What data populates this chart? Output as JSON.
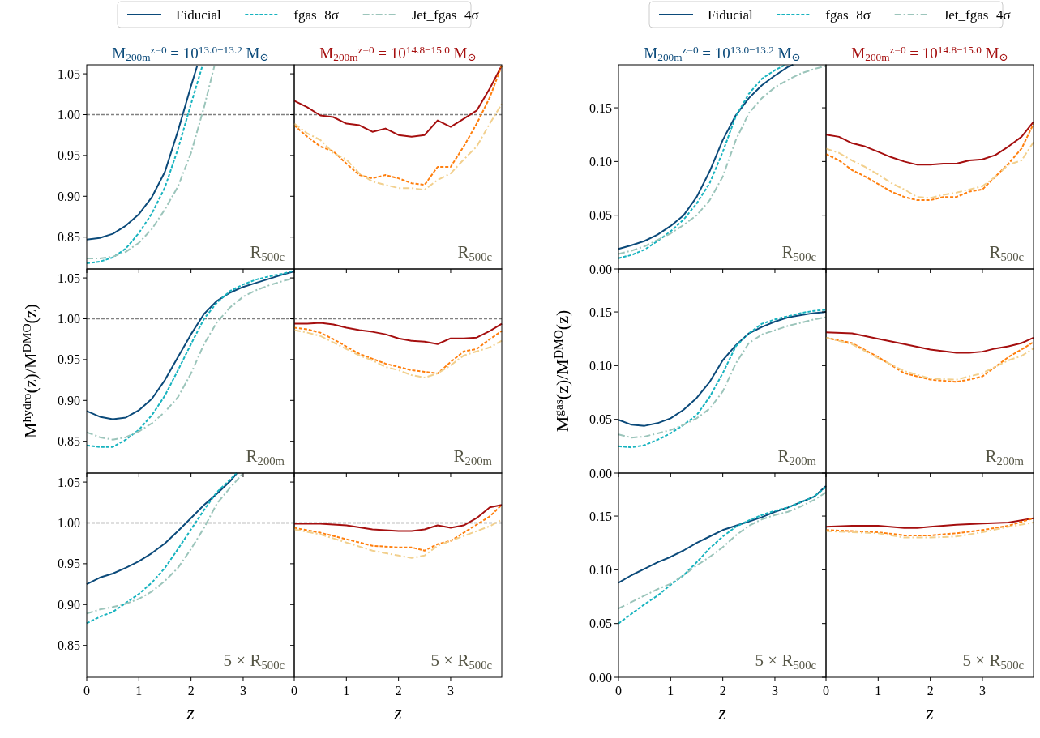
{
  "chart_data": [
    {
      "type": "line",
      "title": "M$_{200m}$$^{z=0}$ = 10$^{13.0−13.2}$ M$_{⊙}$",
      "legend": "top",
      "xlim": [
        0,
        3.98
      ],
      "xticks": [
        0,
        1,
        2,
        3
      ],
      "ylim": [
        0.811,
        1.061
      ],
      "yticks": [
        {
          "value": 0.85,
          "label": "0.85"
        },
        {
          "value": 0.9,
          "label": "0.90"
        },
        {
          "value": 0.95,
          "label": "0.95"
        },
        {
          "value": 1.0,
          "label": "1.00"
        },
        {
          "value": 1.05,
          "label": "1.05"
        }
      ],
      "tick_labels": "y",
      "ref_lines": [
        {
          "axis": "y",
          "value": 1.0,
          "color": "#808080",
          "line_style": "dashed"
        }
      ],
      "annotations": [
        "R$_{500c}$"
      ],
      "series": [
        {
          "name": "Fiducial",
          "color": "#0b4a7a",
          "line_style": "solid",
          "x": [
            0,
            0.25,
            0.5,
            0.75,
            1,
            1.25,
            1.5,
            1.75,
            2,
            2.12
          ],
          "values": [
            0.847,
            0.849,
            0.854,
            0.864,
            0.878,
            0.899,
            0.93,
            0.98,
            1.035,
            1.06
          ]
        },
        {
          "name": "fgas−8σ",
          "color": "#17b3bf",
          "line_style": "dashed",
          "x": [
            0,
            0.25,
            0.5,
            0.75,
            1,
            1.25,
            1.5,
            1.75,
            2,
            2.22
          ],
          "values": [
            0.818,
            0.82,
            0.825,
            0.836,
            0.855,
            0.879,
            0.911,
            0.958,
            1.013,
            1.06
          ]
        },
        {
          "name": "Jet_fgas−4σ",
          "color": "#9cc5bb",
          "line_style": "dashdot",
          "x": [
            0,
            0.25,
            0.5,
            0.75,
            1,
            1.25,
            1.5,
            1.75,
            2,
            2.25,
            2.45
          ],
          "values": [
            0.824,
            0.824,
            0.826,
            0.832,
            0.843,
            0.86,
            0.884,
            0.912,
            0.953,
            1.009,
            1.06
          ]
        }
      ]
    },
    {
      "type": "line",
      "title": "M$_{200m}$$^{z=0}$ = 10$^{14.8−15.0}$ M$_{⊙}$",
      "xlim": [
        0,
        3.98
      ],
      "xticks": [
        0,
        1,
        2,
        3
      ],
      "ylim": [
        0.811,
        1.061
      ],
      "yticks": [
        0.85,
        0.9,
        0.95,
        1.0,
        1.05
      ],
      "tick_labels": false,
      "ref_lines": [
        {
          "axis": "y",
          "value": 1.0,
          "color": "#808080",
          "line_style": "dashed"
        }
      ],
      "annotations": [
        "R$_{500c}$"
      ],
      "series": [
        {
          "color": "#a50f0f",
          "line_style": "solid",
          "x": [
            0,
            0.25,
            0.5,
            0.75,
            1,
            1.25,
            1.5,
            1.75,
            2,
            2.25,
            2.5,
            2.75,
            3,
            3.25,
            3.5,
            3.75,
            3.98
          ],
          "values": [
            1.017,
            1.009,
            0.999,
            0.997,
            0.989,
            0.987,
            0.979,
            0.983,
            0.975,
            0.973,
            0.975,
            0.993,
            0.985,
            0.995,
            1.005,
            1.032,
            1.06
          ]
        },
        {
          "color": "#ff7f0e",
          "line_style": "dashed",
          "x": [
            0,
            0.25,
            0.5,
            0.75,
            1,
            1.25,
            1.5,
            1.75,
            2,
            2.25,
            2.5,
            2.75,
            3,
            3.25,
            3.5,
            3.75,
            3.98
          ],
          "values": [
            0.987,
            0.973,
            0.961,
            0.955,
            0.94,
            0.926,
            0.922,
            0.926,
            0.922,
            0.916,
            0.914,
            0.936,
            0.936,
            0.961,
            0.989,
            1.021,
            1.06
          ]
        },
        {
          "color": "#f2d08e",
          "line_style": "dashdot",
          "x": [
            0,
            0.25,
            0.5,
            0.75,
            1,
            1.25,
            1.5,
            1.75,
            2,
            2.25,
            2.5,
            2.75,
            3,
            3.25,
            3.5,
            3.75,
            3.98
          ],
          "values": [
            0.989,
            0.977,
            0.969,
            0.953,
            0.945,
            0.928,
            0.918,
            0.914,
            0.91,
            0.91,
            0.908,
            0.92,
            0.928,
            0.945,
            0.961,
            0.989,
            1.013
          ]
        }
      ]
    },
    {
      "type": "line",
      "ylabel": "M$^{hydro}$(z)/M$^{DMO}$(z)",
      "xlim": [
        0,
        3.98
      ],
      "xticks": [
        0,
        1,
        2,
        3
      ],
      "ylim": [
        0.811,
        1.061
      ],
      "yticks": [
        {
          "value": 0.85,
          "label": "0.85"
        },
        {
          "value": 0.9,
          "label": "0.90"
        },
        {
          "value": 0.95,
          "label": "0.95"
        },
        {
          "value": 1.0,
          "label": "1.00"
        },
        {
          "value": 1.05,
          "label": "1.05"
        }
      ],
      "tick_labels": "y",
      "ref_lines": [
        {
          "axis": "y",
          "value": 1.0,
          "color": "#808080",
          "line_style": "dashed"
        }
      ],
      "annotations": [
        "R$_{200m}$"
      ],
      "series": [
        {
          "color": "#0b4a7a",
          "line_style": "solid",
          "x": [
            0,
            0.25,
            0.5,
            0.75,
            1,
            1.25,
            1.5,
            1.75,
            2,
            2.25,
            2.5,
            2.75,
            3,
            3.25,
            3.5,
            3.75,
            3.98
          ],
          "values": [
            0.887,
            0.88,
            0.877,
            0.879,
            0.888,
            0.902,
            0.925,
            0.953,
            0.981,
            1.006,
            1.022,
            1.032,
            1.039,
            1.044,
            1.049,
            1.054,
            1.058
          ]
        },
        {
          "color": "#17b3bf",
          "line_style": "dashed",
          "x": [
            0,
            0.25,
            0.5,
            0.75,
            1,
            1.25,
            1.5,
            1.75,
            2,
            2.25,
            2.5,
            2.75,
            3,
            3.25,
            3.5,
            3.75,
            3.98
          ],
          "values": [
            0.845,
            0.843,
            0.843,
            0.852,
            0.864,
            0.882,
            0.906,
            0.937,
            0.969,
            1.0,
            1.02,
            1.034,
            1.042,
            1.048,
            1.052,
            1.055,
            1.059
          ]
        },
        {
          "color": "#9cc5bb",
          "line_style": "dashdot",
          "x": [
            0,
            0.25,
            0.5,
            0.75,
            1,
            1.25,
            1.5,
            1.75,
            2,
            2.25,
            2.5,
            2.75,
            3,
            3.25,
            3.5,
            3.75,
            3.98
          ],
          "values": [
            0.861,
            0.855,
            0.852,
            0.855,
            0.862,
            0.872,
            0.886,
            0.904,
            0.933,
            0.969,
            0.996,
            1.014,
            1.027,
            1.035,
            1.041,
            1.046,
            1.05
          ]
        }
      ]
    },
    {
      "type": "line",
      "xlim": [
        0,
        3.98
      ],
      "xticks": [
        0,
        1,
        2,
        3
      ],
      "ylim": [
        0.811,
        1.061
      ],
      "yticks": [
        0.85,
        0.9,
        0.95,
        1.0,
        1.05
      ],
      "tick_labels": false,
      "ref_lines": [
        {
          "axis": "y",
          "value": 1.0,
          "color": "#808080",
          "line_style": "dashed"
        }
      ],
      "annotations": [
        "R$_{200m}$"
      ],
      "series": [
        {
          "color": "#a50f0f",
          "line_style": "solid",
          "x": [
            0,
            0.25,
            0.5,
            0.75,
            1,
            1.25,
            1.5,
            1.75,
            2,
            2.25,
            2.5,
            2.75,
            3,
            3.25,
            3.5,
            3.75,
            3.98
          ],
          "values": [
            0.994,
            0.994,
            0.995,
            0.993,
            0.989,
            0.986,
            0.984,
            0.981,
            0.976,
            0.973,
            0.972,
            0.969,
            0.976,
            0.976,
            0.977,
            0.985,
            0.994
          ]
        },
        {
          "color": "#ff7f0e",
          "line_style": "dashed",
          "x": [
            0,
            0.25,
            0.5,
            0.75,
            1,
            1.25,
            1.5,
            1.75,
            2,
            2.25,
            2.5,
            2.75,
            3,
            3.25,
            3.5,
            3.75,
            3.98
          ],
          "values": [
            0.989,
            0.987,
            0.983,
            0.975,
            0.966,
            0.957,
            0.951,
            0.945,
            0.941,
            0.937,
            0.935,
            0.933,
            0.947,
            0.96,
            0.963,
            0.975,
            0.985
          ]
        },
        {
          "color": "#f2d08e",
          "line_style": "dashdot",
          "x": [
            0,
            0.25,
            0.5,
            0.75,
            1,
            1.25,
            1.5,
            1.75,
            2,
            2.25,
            2.5,
            2.75,
            3,
            3.25,
            3.5,
            3.75,
            3.98
          ],
          "values": [
            0.986,
            0.983,
            0.979,
            0.971,
            0.963,
            0.955,
            0.949,
            0.941,
            0.937,
            0.931,
            0.928,
            0.933,
            0.943,
            0.955,
            0.96,
            0.965,
            0.973
          ]
        }
      ]
    },
    {
      "type": "line",
      "xlabel": "z",
      "xlim": [
        0,
        3.98
      ],
      "xticks": [
        0,
        1,
        2,
        3
      ],
      "ylim": [
        0.811,
        1.061
      ],
      "yticks": [
        {
          "value": 0.85,
          "label": "0.85"
        },
        {
          "value": 0.9,
          "label": "0.90"
        },
        {
          "value": 0.95,
          "label": "0.95"
        },
        {
          "value": 1.0,
          "label": "1.00"
        },
        {
          "value": 1.05,
          "label": "1.05"
        }
      ],
      "ref_lines": [
        {
          "axis": "y",
          "value": 1.0,
          "color": "#808080",
          "line_style": "dashed"
        }
      ],
      "annotations": [
        "5 × R$_{500c}$"
      ],
      "series": [
        {
          "color": "#0b4a7a",
          "line_style": "solid",
          "x": [
            0,
            0.25,
            0.5,
            0.75,
            1,
            1.25,
            1.5,
            1.75,
            2,
            2.25,
            2.5,
            2.75,
            2.88
          ],
          "values": [
            0.925,
            0.933,
            0.938,
            0.945,
            0.953,
            0.963,
            0.975,
            0.99,
            1.006,
            1.022,
            1.036,
            1.051,
            1.061
          ]
        },
        {
          "color": "#17b3bf",
          "line_style": "dashed",
          "x": [
            0,
            0.25,
            0.5,
            0.75,
            1,
            1.25,
            1.5,
            1.75,
            2,
            2.25,
            2.5,
            2.75,
            2.87
          ],
          "values": [
            0.877,
            0.885,
            0.891,
            0.902,
            0.913,
            0.927,
            0.945,
            0.968,
            0.992,
            1.016,
            1.038,
            1.053,
            1.061
          ]
        },
        {
          "color": "#9cc5bb",
          "line_style": "dashdot",
          "x": [
            0,
            0.25,
            0.5,
            0.75,
            1,
            1.25,
            1.5,
            1.75,
            2,
            2.25,
            2.5,
            2.75,
            3.0
          ],
          "values": [
            0.889,
            0.894,
            0.897,
            0.901,
            0.907,
            0.916,
            0.929,
            0.945,
            0.968,
            0.994,
            1.024,
            1.043,
            1.061
          ]
        }
      ]
    },
    {
      "type": "line",
      "xlabel": "z",
      "xlim": [
        0,
        3.98
      ],
      "xticks": [
        0,
        1,
        2,
        3
      ],
      "ylim": [
        0.811,
        1.061
      ],
      "yticks": [
        0.85,
        0.9,
        0.95,
        1.0,
        1.05
      ],
      "tick_labels": "x",
      "ref_lines": [
        {
          "axis": "y",
          "value": 1.0,
          "color": "#808080",
          "line_style": "dashed"
        }
      ],
      "annotations": [
        "5 × R$_{500c}$"
      ],
      "series": [
        {
          "color": "#a50f0f",
          "line_style": "solid",
          "x": [
            0,
            0.5,
            1,
            1.5,
            2,
            2.25,
            2.5,
            2.75,
            3,
            3.25,
            3.5,
            3.75,
            3.98
          ],
          "values": [
            0.999,
            0.999,
            0.997,
            0.992,
            0.99,
            0.99,
            0.992,
            0.997,
            0.994,
            0.997,
            1.006,
            1.019,
            1.022
          ]
        },
        {
          "color": "#ff7f0e",
          "line_style": "dashed",
          "x": [
            0,
            0.5,
            1,
            1.5,
            2,
            2.25,
            2.5,
            2.75,
            3,
            3.25,
            3.5,
            3.75,
            3.98
          ],
          "values": [
            0.994,
            0.988,
            0.98,
            0.972,
            0.97,
            0.97,
            0.966,
            0.974,
            0.978,
            0.988,
            0.998,
            1.008,
            1.022
          ]
        },
        {
          "color": "#f2d08e",
          "line_style": "dashdot",
          "x": [
            0,
            0.5,
            1,
            1.5,
            2,
            2.25,
            2.5,
            2.75,
            3,
            3.25,
            3.5,
            3.75,
            3.98
          ],
          "values": [
            0.992,
            0.986,
            0.976,
            0.966,
            0.96,
            0.957,
            0.96,
            0.972,
            0.978,
            0.984,
            0.99,
            0.996,
            1.004
          ]
        }
      ]
    },
    {
      "type": "line",
      "title": "M$_{200m}$$^{z=0}$ = 10$^{13.0−13.2}$ M$_{⊙}$",
      "legend": "top",
      "xlim": [
        0,
        3.98
      ],
      "xticks": [
        0,
        1,
        2,
        3
      ],
      "ylim": [
        0,
        0.19
      ],
      "yticks": [
        {
          "value": 0,
          "label": "0.00"
        },
        {
          "value": 0.05,
          "label": "0.05"
        },
        {
          "value": 0.1,
          "label": "0.10"
        },
        {
          "value": 0.15,
          "label": "0.15"
        }
      ],
      "tick_labels": "y",
      "annotations": [
        "R$_{500c}$"
      ],
      "series": [
        {
          "name": "Fiducial",
          "color": "#0b4a7a",
          "line_style": "solid",
          "x": [
            0,
            0.25,
            0.5,
            0.75,
            1,
            1.25,
            1.5,
            1.75,
            2,
            2.25,
            2.5,
            2.75,
            3,
            3.25,
            3.35
          ],
          "values": [
            0.0186,
            0.022,
            0.026,
            0.032,
            0.04,
            0.05,
            0.067,
            0.091,
            0.12,
            0.143,
            0.159,
            0.171,
            0.18,
            0.188,
            0.19
          ]
        },
        {
          "name": "fgas−8σ",
          "color": "#17b3bf",
          "line_style": "dashed",
          "x": [
            0,
            0.25,
            0.5,
            0.75,
            1,
            1.25,
            1.5,
            1.75,
            2,
            2.25,
            2.5,
            2.75,
            3,
            3.2
          ],
          "values": [
            0.01,
            0.013,
            0.018,
            0.026,
            0.035,
            0.046,
            0.061,
            0.08,
            0.109,
            0.142,
            0.163,
            0.177,
            0.185,
            0.19
          ]
        },
        {
          "name": "Jet_fgas−4σ",
          "color": "#9cc5bb",
          "line_style": "dashdot",
          "x": [
            0,
            0.25,
            0.5,
            0.75,
            1,
            1.25,
            1.5,
            1.75,
            2,
            2.25,
            2.5,
            2.75,
            3,
            3.25,
            3.5,
            3.75,
            3.98
          ],
          "values": [
            0.014,
            0.017,
            0.021,
            0.027,
            0.033,
            0.041,
            0.05,
            0.064,
            0.086,
            0.12,
            0.145,
            0.159,
            0.169,
            0.176,
            0.182,
            0.186,
            0.189
          ]
        }
      ]
    },
    {
      "type": "line",
      "title": "M$_{200m}$$^{z=0}$ = 10$^{14.8−15.0}$ M$_{⊙}$",
      "xlim": [
        0,
        3.98
      ],
      "xticks": [
        0,
        1,
        2,
        3
      ],
      "ylim": [
        0,
        0.19
      ],
      "yticks": [
        0,
        0.05,
        0.1,
        0.15
      ],
      "tick_labels": false,
      "annotations": [
        "R$_{500c}$"
      ],
      "series": [
        {
          "color": "#a50f0f",
          "line_style": "solid",
          "x": [
            0,
            0.25,
            0.5,
            0.75,
            1,
            1.25,
            1.5,
            1.75,
            2,
            2.25,
            2.5,
            2.75,
            3,
            3.25,
            3.5,
            3.75,
            3.98
          ],
          "values": [
            0.125,
            0.123,
            0.117,
            0.114,
            0.109,
            0.104,
            0.1,
            0.097,
            0.097,
            0.098,
            0.098,
            0.101,
            0.102,
            0.106,
            0.114,
            0.123,
            0.137
          ]
        },
        {
          "color": "#ff7f0e",
          "line_style": "dashed",
          "x": [
            0,
            0.25,
            0.5,
            0.75,
            1,
            1.25,
            1.5,
            1.75,
            2,
            2.25,
            2.5,
            2.75,
            3,
            3.25,
            3.5,
            3.75,
            3.98
          ],
          "values": [
            0.107,
            0.101,
            0.092,
            0.086,
            0.079,
            0.072,
            0.067,
            0.064,
            0.064,
            0.067,
            0.067,
            0.072,
            0.074,
            0.086,
            0.098,
            0.112,
            0.135
          ]
        },
        {
          "color": "#f2d08e",
          "line_style": "dashdot",
          "x": [
            0,
            0.25,
            0.5,
            0.75,
            1,
            1.25,
            1.5,
            1.75,
            2,
            2.25,
            2.5,
            2.75,
            3,
            3.25,
            3.5,
            3.75,
            3.98
          ],
          "values": [
            0.112,
            0.108,
            0.101,
            0.095,
            0.088,
            0.08,
            0.074,
            0.067,
            0.066,
            0.069,
            0.071,
            0.074,
            0.077,
            0.086,
            0.097,
            0.101,
            0.118
          ]
        }
      ]
    },
    {
      "type": "line",
      "ylabel": "M$^{gas}$(z)/M$^{DMO}$(z)",
      "xlim": [
        0,
        3.98
      ],
      "xticks": [
        0,
        1,
        2,
        3
      ],
      "ylim": [
        0,
        0.19
      ],
      "yticks": [
        {
          "value": 0,
          "label": "0.00"
        },
        {
          "value": 0.05,
          "label": "0.05"
        },
        {
          "value": 0.1,
          "label": "0.10"
        },
        {
          "value": 0.15,
          "label": "0.15"
        }
      ],
      "tick_labels": "y",
      "annotations": [
        "R$_{200m}$"
      ],
      "series": [
        {
          "color": "#0b4a7a",
          "line_style": "solid",
          "x": [
            0,
            0.25,
            0.5,
            0.75,
            1,
            1.25,
            1.5,
            1.75,
            2,
            2.25,
            2.5,
            2.75,
            3,
            3.25,
            3.5,
            3.75,
            3.98
          ],
          "values": [
            0.0496,
            0.045,
            0.044,
            0.0465,
            0.051,
            0.059,
            0.07,
            0.085,
            0.105,
            0.119,
            0.13,
            0.136,
            0.141,
            0.145,
            0.147,
            0.149,
            0.15
          ]
        },
        {
          "color": "#17b3bf",
          "line_style": "dashed",
          "x": [
            0,
            0.25,
            0.5,
            0.75,
            1,
            1.25,
            1.5,
            1.75,
            2,
            2.25,
            2.5,
            2.75,
            3,
            3.25,
            3.5,
            3.75,
            3.98
          ],
          "values": [
            0.025,
            0.024,
            0.026,
            0.031,
            0.037,
            0.045,
            0.054,
            0.071,
            0.093,
            0.118,
            0.13,
            0.139,
            0.143,
            0.146,
            0.149,
            0.151,
            0.152
          ]
        },
        {
          "color": "#9cc5bb",
          "line_style": "dashdot",
          "x": [
            0,
            0.25,
            0.5,
            0.75,
            1,
            1.25,
            1.5,
            1.75,
            2,
            2.25,
            2.5,
            2.75,
            3,
            3.25,
            3.5,
            3.75,
            3.98
          ],
          "values": [
            0.036,
            0.033,
            0.034,
            0.037,
            0.04,
            0.045,
            0.051,
            0.06,
            0.076,
            0.102,
            0.121,
            0.129,
            0.133,
            0.137,
            0.14,
            0.143,
            0.145
          ]
        }
      ]
    },
    {
      "type": "line",
      "xlim": [
        0,
        3.98
      ],
      "xticks": [
        0,
        1,
        2,
        3
      ],
      "ylim": [
        0,
        0.19
      ],
      "yticks": [
        0,
        0.05,
        0.1,
        0.15
      ],
      "tick_labels": false,
      "annotations": [
        "R$_{200m}$"
      ],
      "series": [
        {
          "color": "#a50f0f",
          "line_style": "solid",
          "x": [
            0,
            0.5,
            1,
            1.5,
            2,
            2.5,
            2.75,
            3,
            3.25,
            3.5,
            3.75,
            3.98
          ],
          "values": [
            0.131,
            0.13,
            0.125,
            0.12,
            0.115,
            0.112,
            0.112,
            0.113,
            0.116,
            0.118,
            0.121,
            0.126
          ]
        },
        {
          "color": "#ff7f0e",
          "line_style": "dashed",
          "x": [
            0,
            0.5,
            1,
            1.5,
            2,
            2.25,
            2.5,
            2.75,
            3,
            3.25,
            3.5,
            3.75,
            3.98
          ],
          "values": [
            0.126,
            0.121,
            0.108,
            0.093,
            0.087,
            0.086,
            0.085,
            0.087,
            0.09,
            0.099,
            0.108,
            0.115,
            0.122
          ]
        },
        {
          "color": "#f2d08e",
          "line_style": "dashdot",
          "x": [
            0,
            0.5,
            1,
            1.5,
            2,
            2.5,
            2.75,
            3,
            3.25,
            3.5,
            3.75,
            3.98
          ],
          "values": [
            0.126,
            0.12,
            0.107,
            0.095,
            0.088,
            0.087,
            0.09,
            0.093,
            0.099,
            0.105,
            0.109,
            0.116
          ]
        }
      ]
    },
    {
      "type": "line",
      "xlabel": "z",
      "xlim": [
        0,
        3.98
      ],
      "xticks": [
        0,
        1,
        2,
        3
      ],
      "ylim": [
        0,
        0.19
      ],
      "yticks": [
        {
          "value": 0,
          "label": "0.00"
        },
        {
          "value": 0.05,
          "label": "0.05"
        },
        {
          "value": 0.1,
          "label": "0.10"
        },
        {
          "value": 0.15,
          "label": "0.15"
        }
      ],
      "annotations": [
        "5 × R$_{500c}$"
      ],
      "series": [
        {
          "color": "#0b4a7a",
          "line_style": "solid",
          "x": [
            0,
            0.25,
            0.5,
            0.75,
            1,
            1.25,
            1.5,
            1.75,
            2,
            2.25,
            2.5,
            2.75,
            3,
            3.25,
            3.5,
            3.75,
            3.98
          ],
          "values": [
            0.088,
            0.095,
            0.101,
            0.107,
            0.112,
            0.118,
            0.125,
            0.131,
            0.137,
            0.141,
            0.145,
            0.149,
            0.154,
            0.158,
            0.163,
            0.168,
            0.178
          ]
        },
        {
          "color": "#17b3bf",
          "line_style": "dashed",
          "x": [
            0,
            0.25,
            0.5,
            0.75,
            1,
            1.25,
            1.5,
            1.75,
            2,
            2.25,
            2.5,
            2.75,
            3,
            3.25,
            3.5,
            3.75,
            3.98
          ],
          "values": [
            0.05,
            0.059,
            0.068,
            0.076,
            0.086,
            0.095,
            0.107,
            0.12,
            0.131,
            0.14,
            0.146,
            0.151,
            0.155,
            0.158,
            0.163,
            0.168,
            0.177
          ]
        },
        {
          "color": "#9cc5bb",
          "line_style": "dashdot",
          "x": [
            0,
            0.25,
            0.5,
            0.75,
            1,
            1.25,
            1.5,
            1.75,
            2,
            2.25,
            2.5,
            2.75,
            3,
            3.25,
            3.5,
            3.75,
            3.98
          ],
          "values": [
            0.064,
            0.07,
            0.076,
            0.082,
            0.087,
            0.095,
            0.104,
            0.112,
            0.121,
            0.132,
            0.141,
            0.147,
            0.151,
            0.154,
            0.159,
            0.165,
            0.172
          ]
        }
      ]
    },
    {
      "type": "line",
      "xlabel": "z",
      "xlim": [
        0,
        3.98
      ],
      "xticks": [
        0,
        1,
        2,
        3
      ],
      "ylim": [
        0,
        0.19
      ],
      "yticks": [
        0,
        0.05,
        0.1,
        0.15
      ],
      "tick_labels": "x",
      "annotations": [
        "5 × R$_{500c}$"
      ],
      "series": [
        {
          "color": "#a50f0f",
          "line_style": "solid",
          "x": [
            0,
            0.5,
            1,
            1.5,
            1.75,
            2,
            2.5,
            3,
            3.5,
            3.98
          ],
          "values": [
            0.14,
            0.141,
            0.141,
            0.139,
            0.139,
            0.14,
            0.142,
            0.143,
            0.144,
            0.148
          ]
        },
        {
          "color": "#ff7f0e",
          "line_style": "dashed",
          "x": [
            0,
            0.5,
            1,
            1.5,
            2,
            2.5,
            3,
            3.5,
            3.98
          ],
          "values": [
            0.137,
            0.136,
            0.135,
            0.132,
            0.132,
            0.134,
            0.137,
            0.141,
            0.148
          ]
        },
        {
          "color": "#f2d08e",
          "line_style": "dashdot",
          "x": [
            0,
            0.5,
            1,
            1.5,
            2,
            2.5,
            3,
            3.5,
            3.98
          ],
          "values": [
            0.136,
            0.135,
            0.134,
            0.13,
            0.13,
            0.131,
            0.135,
            0.14,
            0.144
          ]
        }
      ]
    }
  ]
}
